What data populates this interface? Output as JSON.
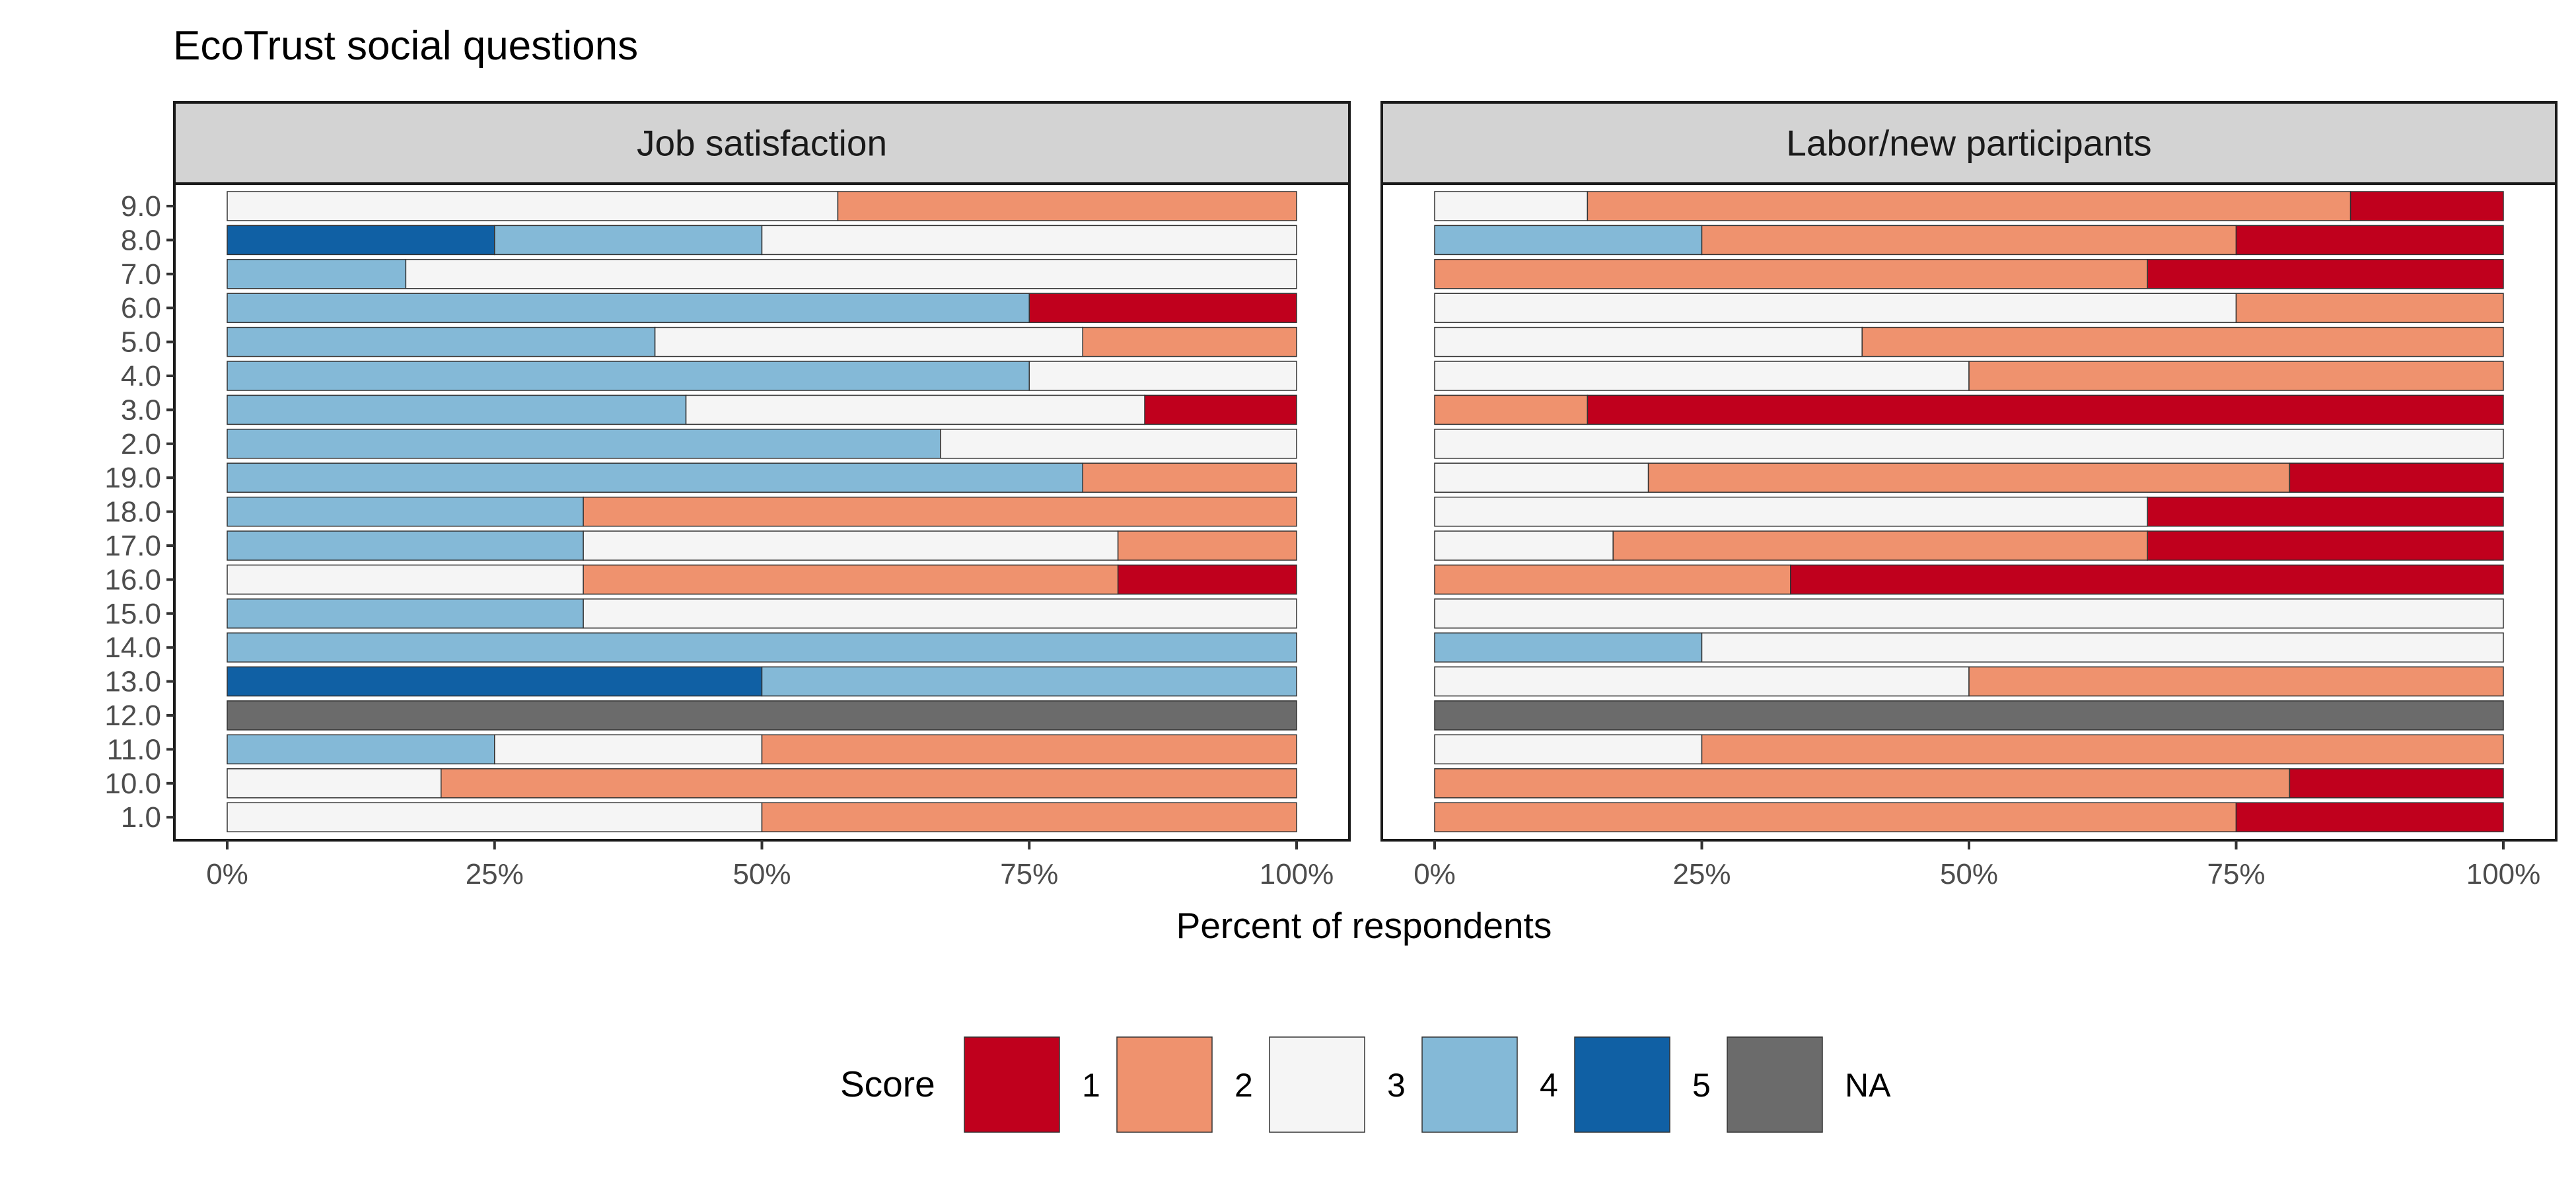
{
  "chart_data": {
    "type": "bar",
    "orientation": "horizontal",
    "stacked": true,
    "title": "EcoTrust social questions",
    "xlabel": "Percent of respondents",
    "ylabel": "",
    "xlim": [
      0,
      100
    ],
    "x_ticks": [
      "0%",
      "25%",
      "50%",
      "75%",
      "100%"
    ],
    "categories": [
      "9.0",
      "8.0",
      "7.0",
      "6.0",
      "5.0",
      "4.0",
      "3.0",
      "2.0",
      "19.0",
      "18.0",
      "17.0",
      "16.0",
      "15.0",
      "14.0",
      "13.0",
      "12.0",
      "11.0",
      "10.0",
      "1.0"
    ],
    "legend": {
      "title": "Score",
      "position": "bottom",
      "entries": [
        {
          "label": "1",
          "color": "#c0001d"
        },
        {
          "label": "2",
          "color": "#ef926e"
        },
        {
          "label": "3",
          "color": "#f5f5f5"
        },
        {
          "label": "4",
          "color": "#84b9d7"
        },
        {
          "label": "5",
          "color": "#1060a4"
        },
        {
          "label": "NA",
          "color": "#6b6b6b"
        }
      ]
    },
    "stack_order_left_to_right": [
      "5",
      "4",
      "3",
      "2",
      "1",
      "NA"
    ],
    "panels": [
      {
        "title": "Job satisfaction",
        "rows": [
          {
            "category": "9.0",
            "values": {
              "3": 57.1,
              "2": 42.9
            }
          },
          {
            "category": "8.0",
            "values": {
              "5": 25,
              "4": 25,
              "3": 50
            }
          },
          {
            "category": "7.0",
            "values": {
              "4": 16.7,
              "3": 83.3
            }
          },
          {
            "category": "6.0",
            "values": {
              "4": 75,
              "1": 25
            }
          },
          {
            "category": "5.0",
            "values": {
              "4": 40,
              "3": 40,
              "2": 20
            }
          },
          {
            "category": "4.0",
            "values": {
              "4": 75,
              "3": 25
            }
          },
          {
            "category": "3.0",
            "values": {
              "4": 42.9,
              "3": 42.9,
              "1": 14.2
            }
          },
          {
            "category": "2.0",
            "values": {
              "4": 66.7,
              "3": 33.3
            }
          },
          {
            "category": "19.0",
            "values": {
              "4": 80,
              "2": 20
            }
          },
          {
            "category": "18.0",
            "values": {
              "4": 33.3,
              "2": 66.7
            }
          },
          {
            "category": "17.0",
            "values": {
              "4": 33.3,
              "3": 50,
              "2": 16.7
            }
          },
          {
            "category": "16.0",
            "values": {
              "3": 33.3,
              "2": 50,
              "1": 16.7
            }
          },
          {
            "category": "15.0",
            "values": {
              "4": 33.3,
              "3": 66.7
            }
          },
          {
            "category": "14.0",
            "values": {
              "4": 100
            }
          },
          {
            "category": "13.0",
            "values": {
              "5": 50,
              "4": 50
            }
          },
          {
            "category": "12.0",
            "values": {
              "NA": 100
            }
          },
          {
            "category": "11.0",
            "values": {
              "4": 25,
              "3": 25,
              "2": 50
            }
          },
          {
            "category": "10.0",
            "values": {
              "3": 20,
              "2": 80
            }
          },
          {
            "category": "1.0",
            "values": {
              "3": 50,
              "2": 50
            }
          }
        ]
      },
      {
        "title": "Labor/new participants",
        "rows": [
          {
            "category": "9.0",
            "values": {
              "3": 14.3,
              "2": 71.4,
              "1": 14.3
            }
          },
          {
            "category": "8.0",
            "values": {
              "4": 25,
              "2": 50,
              "1": 25
            }
          },
          {
            "category": "7.0",
            "values": {
              "2": 66.7,
              "1": 33.3
            }
          },
          {
            "category": "6.0",
            "values": {
              "3": 75,
              "2": 25
            }
          },
          {
            "category": "5.0",
            "values": {
              "3": 40,
              "2": 60
            }
          },
          {
            "category": "4.0",
            "values": {
              "3": 50,
              "2": 50
            }
          },
          {
            "category": "3.0",
            "values": {
              "2": 14.3,
              "1": 85.7
            }
          },
          {
            "category": "2.0",
            "values": {
              "3": 100
            }
          },
          {
            "category": "19.0",
            "values": {
              "3": 20,
              "2": 60,
              "1": 20
            }
          },
          {
            "category": "18.0",
            "values": {
              "3": 66.7,
              "1": 33.3
            }
          },
          {
            "category": "17.0",
            "values": {
              "3": 16.7,
              "2": 50,
              "1": 33.3
            }
          },
          {
            "category": "16.0",
            "values": {
              "2": 33.3,
              "1": 66.7
            }
          },
          {
            "category": "15.0",
            "values": {
              "3": 100
            }
          },
          {
            "category": "14.0",
            "values": {
              "4": 25,
              "3": 75
            }
          },
          {
            "category": "13.0",
            "values": {
              "3": 50,
              "2": 50
            }
          },
          {
            "category": "12.0",
            "values": {
              "NA": 100
            }
          },
          {
            "category": "11.0",
            "values": {
              "3": 25,
              "2": 75
            }
          },
          {
            "category": "10.0",
            "values": {
              "2": 80,
              "1": 20
            }
          },
          {
            "category": "1.0",
            "values": {
              "2": 75,
              "1": 25
            }
          }
        ]
      }
    ]
  }
}
